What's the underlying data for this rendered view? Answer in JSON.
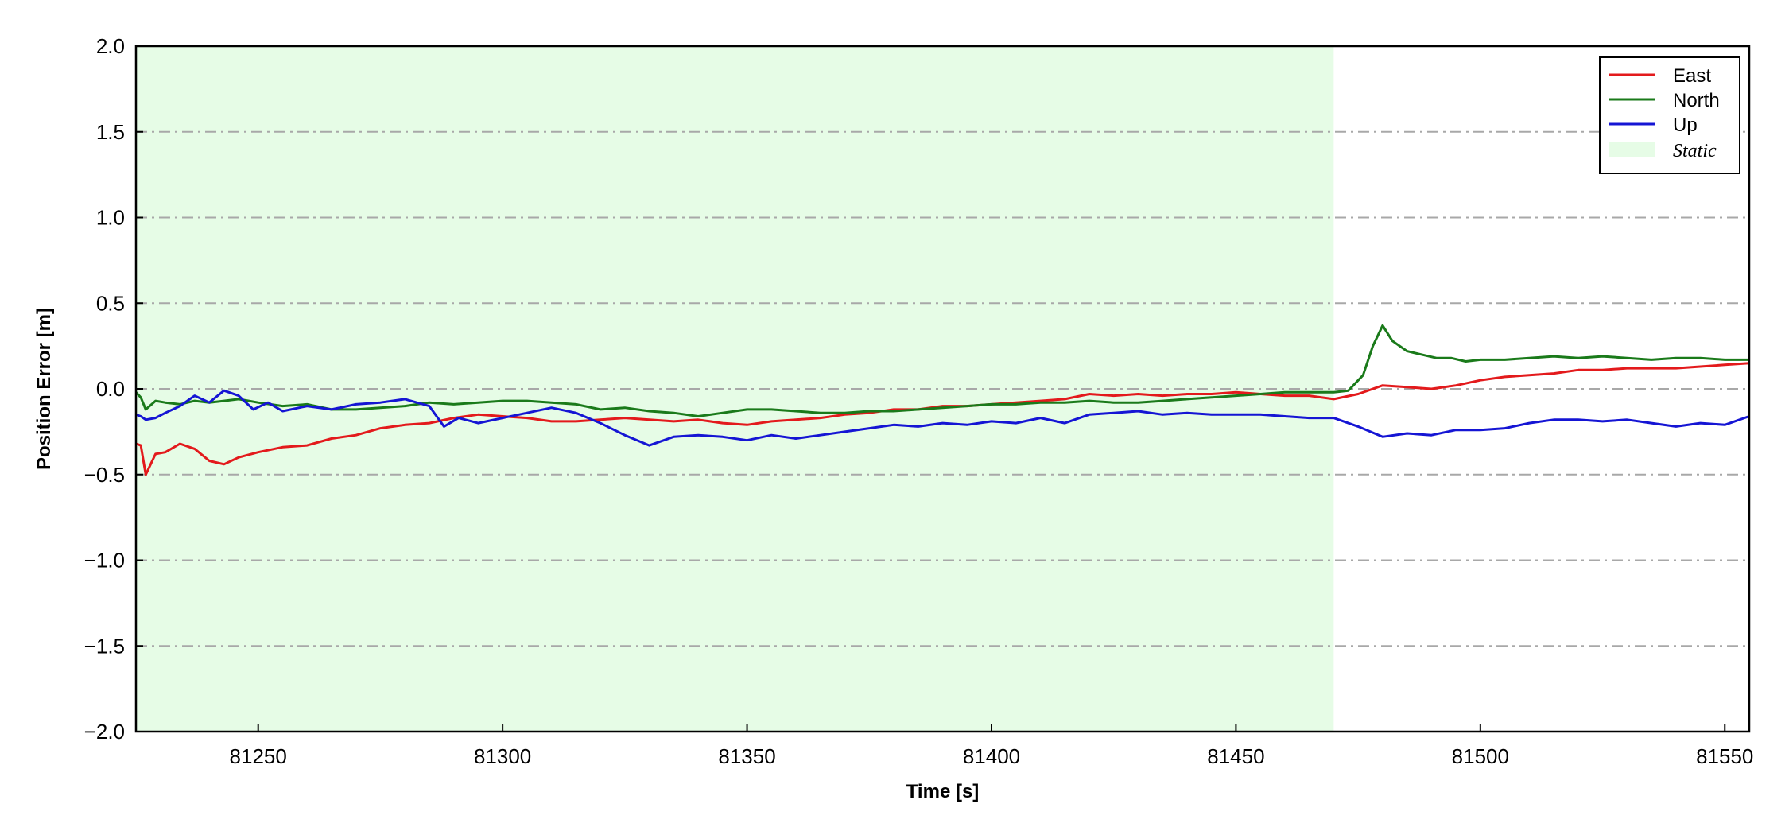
{
  "chart_data": {
    "type": "line",
    "xlabel": "Time [s]",
    "ylabel": "Position Error [m]",
    "xlim": [
      81225,
      81555
    ],
    "ylim": [
      -2.0,
      2.0
    ],
    "x_ticks": [
      81250,
      81300,
      81350,
      81400,
      81450,
      81500,
      81550
    ],
    "y_ticks": [
      -2.0,
      -1.5,
      -1.0,
      -0.5,
      0.0,
      0.5,
      1.0,
      1.5,
      2.0
    ],
    "x_tick_labels": [
      "81250",
      "81300",
      "81350",
      "81400",
      "81450",
      "81500",
      "81550"
    ],
    "y_tick_labels": [
      "−2.0",
      "−1.5",
      "−1.0",
      "−0.5",
      "0.0",
      "0.5",
      "1.0",
      "1.5",
      "2.0"
    ],
    "grid": "horizontal dash-dot",
    "legend_position": "top-right",
    "shaded_region": {
      "label": "Static",
      "x_start": 81225,
      "x_end": 81470,
      "color": "#e6fce6"
    },
    "series": [
      {
        "name": "East",
        "color": "#e31a1c",
        "x": [
          81225,
          81226,
          81227,
          81229,
          81231,
          81234,
          81237,
          81240,
          81243,
          81246,
          81250,
          81255,
          81260,
          81265,
          81270,
          81275,
          81280,
          81285,
          81290,
          81295,
          81300,
          81305,
          81310,
          81315,
          81320,
          81325,
          81330,
          81335,
          81340,
          81345,
          81350,
          81355,
          81360,
          81365,
          81370,
          81375,
          81380,
          81385,
          81390,
          81395,
          81400,
          81405,
          81410,
          81415,
          81420,
          81425,
          81430,
          81435,
          81440,
          81445,
          81450,
          81455,
          81460,
          81465,
          81470,
          81475,
          81480,
          81485,
          81490,
          81495,
          81500,
          81505,
          81510,
          81515,
          81520,
          81525,
          81530,
          81535,
          81540,
          81545,
          81550,
          81555
        ],
        "values": [
          -0.32,
          -0.33,
          -0.5,
          -0.38,
          -0.37,
          -0.32,
          -0.35,
          -0.42,
          -0.44,
          -0.4,
          -0.37,
          -0.34,
          -0.33,
          -0.29,
          -0.27,
          -0.23,
          -0.21,
          -0.2,
          -0.17,
          -0.15,
          -0.16,
          -0.17,
          -0.19,
          -0.19,
          -0.18,
          -0.17,
          -0.18,
          -0.19,
          -0.18,
          -0.2,
          -0.21,
          -0.19,
          -0.18,
          -0.17,
          -0.15,
          -0.14,
          -0.12,
          -0.12,
          -0.1,
          -0.1,
          -0.09,
          -0.08,
          -0.07,
          -0.06,
          -0.03,
          -0.04,
          -0.03,
          -0.04,
          -0.03,
          -0.03,
          -0.02,
          -0.03,
          -0.04,
          -0.04,
          -0.06,
          -0.03,
          0.02,
          0.01,
          0.0,
          0.02,
          0.05,
          0.07,
          0.08,
          0.09,
          0.11,
          0.11,
          0.12,
          0.12,
          0.12,
          0.13,
          0.14,
          0.15
        ]
      },
      {
        "name": "North",
        "color": "#1a7a1a",
        "x": [
          81225,
          81226,
          81227,
          81229,
          81231,
          81234,
          81237,
          81240,
          81243,
          81246,
          81250,
          81255,
          81260,
          81265,
          81270,
          81275,
          81280,
          81285,
          81290,
          81295,
          81300,
          81305,
          81310,
          81315,
          81320,
          81325,
          81330,
          81335,
          81340,
          81345,
          81350,
          81355,
          81360,
          81365,
          81370,
          81375,
          81380,
          81385,
          81390,
          81395,
          81400,
          81405,
          81410,
          81415,
          81420,
          81425,
          81430,
          81435,
          81440,
          81445,
          81450,
          81455,
          81460,
          81465,
          81470,
          81473,
          81476,
          81478,
          81480,
          81482,
          81485,
          81488,
          81491,
          81494,
          81497,
          81500,
          81505,
          81510,
          81515,
          81520,
          81525,
          81530,
          81535,
          81540,
          81545,
          81550,
          81555
        ],
        "values": [
          -0.02,
          -0.05,
          -0.12,
          -0.07,
          -0.08,
          -0.09,
          -0.07,
          -0.08,
          -0.07,
          -0.06,
          -0.08,
          -0.1,
          -0.09,
          -0.12,
          -0.12,
          -0.11,
          -0.1,
          -0.08,
          -0.09,
          -0.08,
          -0.07,
          -0.07,
          -0.08,
          -0.09,
          -0.12,
          -0.11,
          -0.13,
          -0.14,
          -0.16,
          -0.14,
          -0.12,
          -0.12,
          -0.13,
          -0.14,
          -0.14,
          -0.13,
          -0.13,
          -0.12,
          -0.11,
          -0.1,
          -0.09,
          -0.09,
          -0.08,
          -0.08,
          -0.07,
          -0.08,
          -0.08,
          -0.07,
          -0.06,
          -0.05,
          -0.04,
          -0.03,
          -0.02,
          -0.02,
          -0.02,
          -0.01,
          0.08,
          0.25,
          0.37,
          0.28,
          0.22,
          0.2,
          0.18,
          0.18,
          0.16,
          0.17,
          0.17,
          0.18,
          0.19,
          0.18,
          0.19,
          0.18,
          0.17,
          0.18,
          0.18,
          0.17,
          0.17
        ]
      },
      {
        "name": "Up",
        "color": "#1515d4",
        "x": [
          81225,
          81226,
          81227,
          81229,
          81231,
          81234,
          81237,
          81240,
          81243,
          81246,
          81249,
          81252,
          81255,
          81260,
          81265,
          81270,
          81275,
          81280,
          81285,
          81288,
          81291,
          81295,
          81300,
          81305,
          81310,
          81315,
          81320,
          81325,
          81330,
          81335,
          81340,
          81345,
          81350,
          81355,
          81360,
          81365,
          81370,
          81375,
          81380,
          81385,
          81390,
          81395,
          81400,
          81405,
          81410,
          81415,
          81420,
          81425,
          81430,
          81435,
          81440,
          81445,
          81450,
          81455,
          81460,
          81465,
          81470,
          81475,
          81480,
          81485,
          81490,
          81495,
          81500,
          81505,
          81510,
          81515,
          81520,
          81525,
          81530,
          81535,
          81540,
          81545,
          81550,
          81555
        ],
        "values": [
          -0.15,
          -0.16,
          -0.18,
          -0.17,
          -0.14,
          -0.1,
          -0.04,
          -0.08,
          -0.01,
          -0.04,
          -0.12,
          -0.08,
          -0.13,
          -0.1,
          -0.12,
          -0.09,
          -0.08,
          -0.06,
          -0.1,
          -0.22,
          -0.17,
          -0.2,
          -0.17,
          -0.14,
          -0.11,
          -0.14,
          -0.2,
          -0.27,
          -0.33,
          -0.28,
          -0.27,
          -0.28,
          -0.3,
          -0.27,
          -0.29,
          -0.27,
          -0.25,
          -0.23,
          -0.21,
          -0.22,
          -0.2,
          -0.21,
          -0.19,
          -0.2,
          -0.17,
          -0.2,
          -0.15,
          -0.14,
          -0.13,
          -0.15,
          -0.14,
          -0.15,
          -0.15,
          -0.15,
          -0.16,
          -0.17,
          -0.17,
          -0.22,
          -0.28,
          -0.26,
          -0.27,
          -0.24,
          -0.24,
          -0.23,
          -0.2,
          -0.18,
          -0.18,
          -0.19,
          -0.18,
          -0.2,
          -0.22,
          -0.2,
          -0.21,
          -0.16
        ]
      }
    ]
  }
}
